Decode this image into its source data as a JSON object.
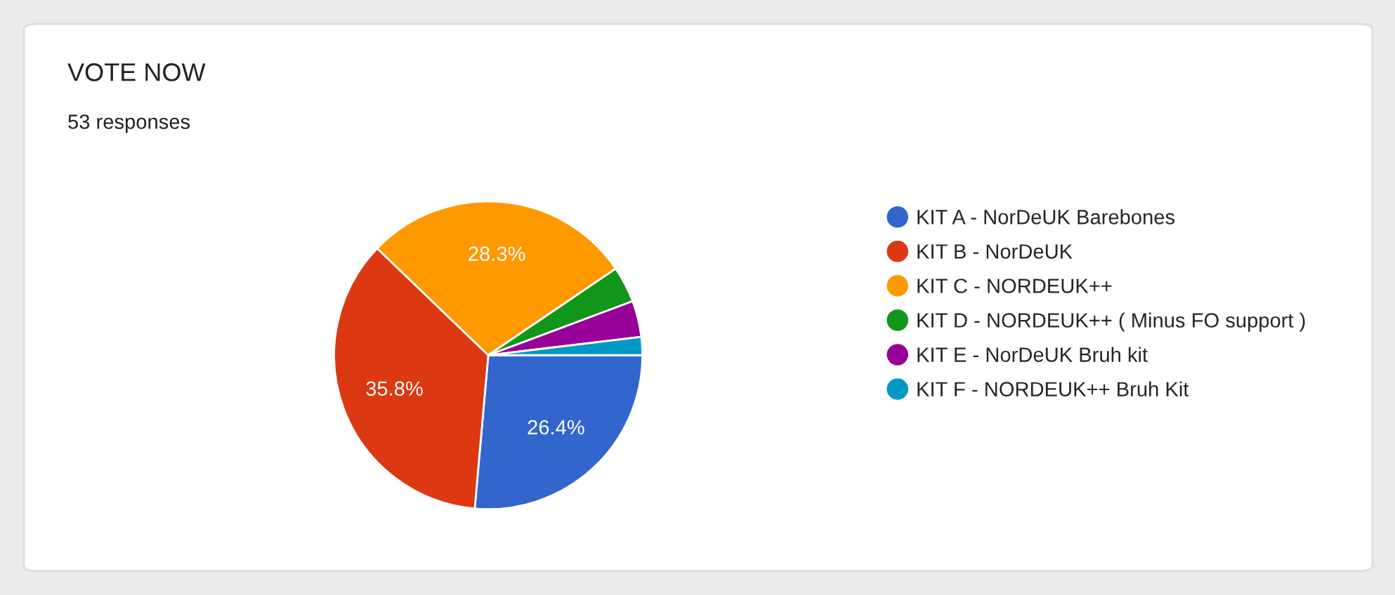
{
  "chart_data": {
    "type": "pie",
    "title": "VOTE NOW",
    "subtitle": "53 responses",
    "categories": [
      "KIT A - NorDeUK Barebones",
      "KIT B - NorDeUK",
      "KIT C - NORDEUK++",
      "KIT D - NORDEUK++ ( Minus FO support )",
      "KIT E - NorDeUK Bruh kit",
      "KIT F - NORDEUK++ Bruh Kit"
    ],
    "values": [
      26.4,
      35.8,
      28.3,
      3.8,
      3.8,
      1.9
    ],
    "colors": [
      "#3366cc",
      "#dc3912",
      "#ff9900",
      "#109618",
      "#990099",
      "#0099c6"
    ],
    "value_labels": [
      "26.4%",
      "35.8%",
      "28.3%",
      null,
      null,
      null
    ],
    "legend": "right"
  }
}
